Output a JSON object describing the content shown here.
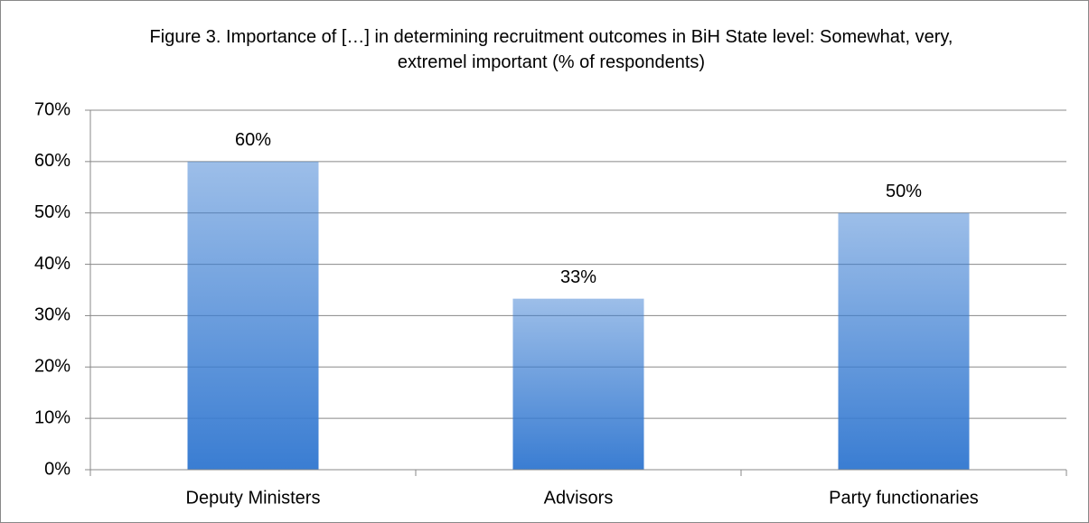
{
  "chart_data": {
    "type": "bar",
    "title": "Figure 3. Importance of […] in determining recruitment outcomes in BiH State level: Somewhat, very, extremel important (% of respondents)",
    "categories": [
      "Deputy Ministers",
      "Advisors",
      "Party functionaries"
    ],
    "values": [
      60,
      33.3,
      50
    ],
    "value_labels": [
      "60%",
      "33%",
      "50%"
    ],
    "color": "#3a7dd2",
    "ylim": [
      0,
      70
    ],
    "yticks": [
      {
        "value": 0,
        "label": "0%"
      },
      {
        "value": 10,
        "label": "10%"
      },
      {
        "value": 20,
        "label": "20%"
      },
      {
        "value": 30,
        "label": "30%"
      },
      {
        "value": 40,
        "label": "40%"
      },
      {
        "value": 50,
        "label": "50%"
      },
      {
        "value": 60,
        "label": "60%"
      },
      {
        "value": 70,
        "label": "70%"
      }
    ],
    "grid": true
  }
}
